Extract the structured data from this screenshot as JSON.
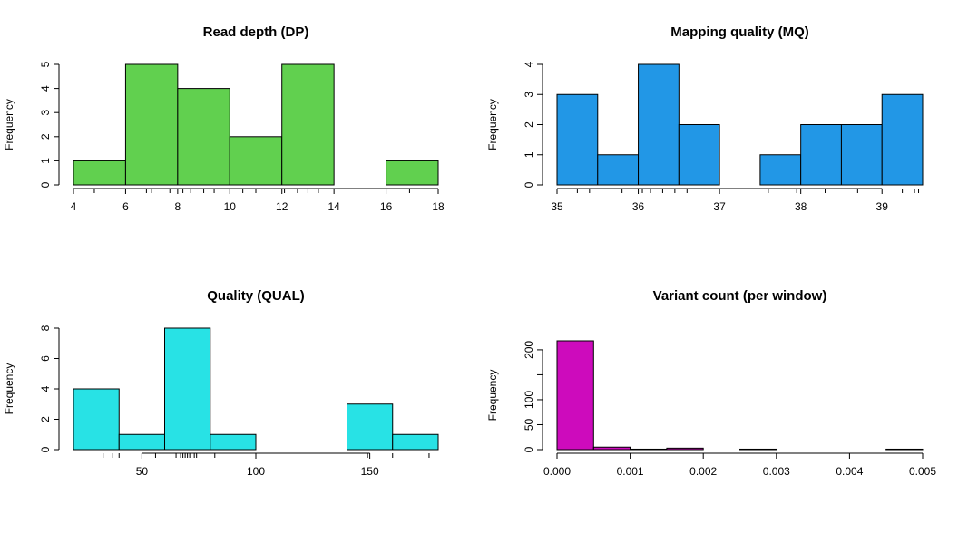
{
  "chart_data": [
    {
      "type": "bar",
      "title": "Read depth (DP)",
      "xlabel": "",
      "ylabel": "Frequency",
      "color": "#61d04f",
      "breaks": [
        4,
        6,
        8,
        10,
        12,
        14,
        16,
        18
      ],
      "counts": [
        1,
        5,
        4,
        2,
        5,
        0,
        1
      ],
      "xlim": [
        4,
        18
      ],
      "ylim": [
        0,
        5
      ],
      "xticks": [
        4,
        6,
        8,
        10,
        12,
        14,
        16,
        18
      ],
      "yticks": [
        0,
        1,
        2,
        3,
        4,
        5
      ],
      "rug": [
        4.8,
        6.8,
        7.0,
        7.7,
        8.2,
        8.5,
        9.0,
        9.4,
        10.5,
        11.0,
        12.1,
        12.6,
        13.0,
        13.4,
        16.9
      ]
    },
    {
      "type": "bar",
      "title": "Mapping quality (MQ)",
      "xlabel": "",
      "ylabel": "Frequency",
      "color": "#2297e6",
      "breaks": [
        35,
        35.5,
        36,
        36.5,
        37,
        37.5,
        38,
        38.5,
        39,
        39.5
      ],
      "counts": [
        3,
        1,
        4,
        2,
        0,
        1,
        2,
        2,
        3
      ],
      "xlim": [
        35,
        39.5
      ],
      "ylim": [
        0,
        4
      ],
      "xticks": [
        35,
        36,
        37,
        38,
        39
      ],
      "yticks": [
        0,
        1,
        2,
        3,
        4
      ],
      "rug": [
        35.0,
        35.25,
        35.4,
        35.8,
        36.05,
        36.15,
        36.3,
        36.45,
        36.6,
        37.6,
        37.95,
        38.3,
        38.7,
        39.25,
        39.4,
        39.45
      ]
    },
    {
      "type": "bar",
      "title": "Quality (QUAL)",
      "xlabel": "",
      "ylabel": "Frequency",
      "color": "#28e2e5",
      "breaks": [
        20,
        40,
        60,
        80,
        100,
        120,
        140,
        160,
        180
      ],
      "counts": [
        4,
        1,
        8,
        1,
        0,
        0,
        3,
        1
      ],
      "xlim": [
        20,
        180
      ],
      "ylim": [
        0,
        8
      ],
      "xticks": [
        50,
        100,
        150
      ],
      "yticks": [
        0,
        2,
        4,
        6,
        8
      ],
      "rug": [
        33,
        37,
        40,
        56,
        65,
        67,
        68,
        69,
        70,
        71,
        73,
        74,
        82,
        149,
        160,
        176
      ]
    },
    {
      "type": "bar",
      "title": "Variant count (per window)",
      "xlabel": "",
      "ylabel": "Frequency",
      "color": "#cd0bbc",
      "breaks": [
        0,
        0.0005,
        0.001,
        0.0015,
        0.002,
        0.0025,
        0.003,
        0.0035,
        0.004,
        0.0045,
        0.005
      ],
      "counts": [
        218,
        5,
        1,
        3,
        0,
        1,
        0,
        0,
        0,
        1
      ],
      "xlim": [
        0,
        0.005
      ],
      "ylim": [
        0,
        218
      ],
      "xticks": [
        0.0,
        0.001,
        0.002,
        0.003,
        0.004,
        0.005
      ],
      "xticklabels": [
        "0.000",
        "0.001",
        "0.002",
        "0.003",
        "0.004",
        "0.005"
      ],
      "yticks": [
        0,
        50,
        100,
        150,
        200
      ],
      "yticklabels": [
        "0",
        "50",
        "100",
        "",
        "200"
      ],
      "rug": []
    }
  ]
}
